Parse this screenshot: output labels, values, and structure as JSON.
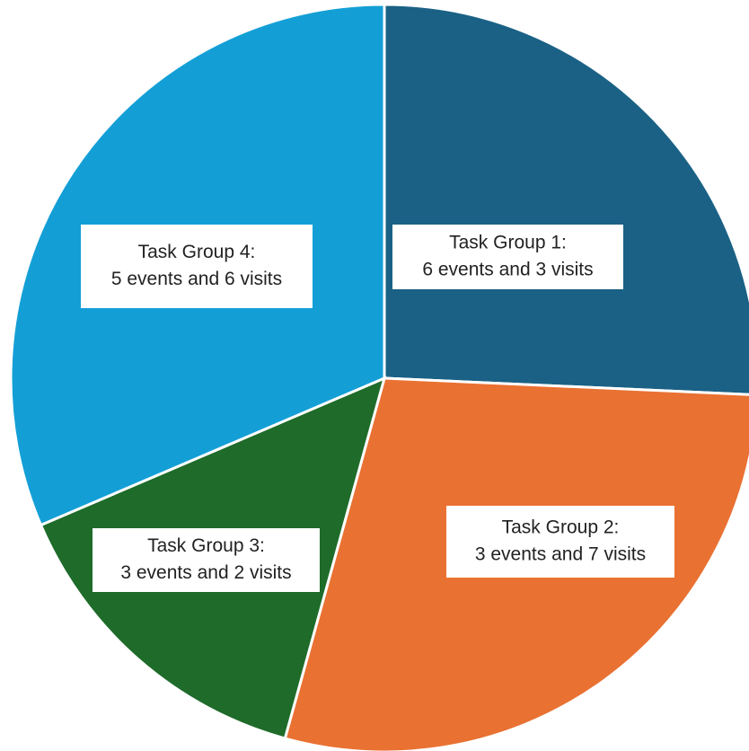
{
  "chart_data": {
    "type": "pie",
    "categories": [
      [
        "Task Group 1:",
        "6 events and 3 visits"
      ],
      [
        "Task Group 2:",
        "3 events and 7 visits"
      ],
      [
        "Task Group 3:",
        "3 events and 2 visits"
      ],
      [
        "Task Group 4:",
        "5 events and 6 visits"
      ]
    ],
    "values": [
      9,
      10,
      5,
      11
    ],
    "colors": [
      "#1a6185",
      "#e97132",
      "#1e6b2a",
      "#139fd6"
    ]
  }
}
